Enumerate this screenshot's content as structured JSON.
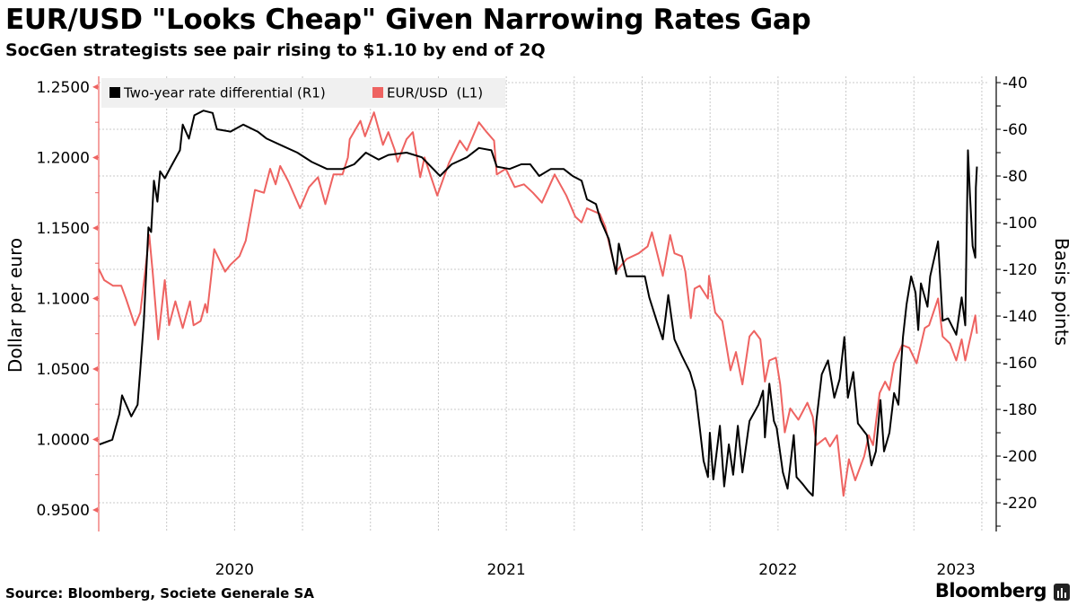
{
  "header": {
    "title": "EUR/USD \"Looks Cheap\" Given Narrowing Rates Gap",
    "subtitle": "SocGen strategists see pair rising to $1.10 by end of 2Q"
  },
  "footer": {
    "source": "Source: Bloomberg, Societe Generale SA",
    "brand": "Bloomberg"
  },
  "chart_data": {
    "type": "line",
    "title": "EUR/USD \"Looks Cheap\" Given Narrowing Rates Gap",
    "x_unit": "decimal year",
    "xlim": [
      2020.0,
      2023.27
    ],
    "x_tick_labels": [
      {
        "label": "2020",
        "at": 2020.5
      },
      {
        "label": "2021",
        "at": 2021.5
      },
      {
        "label": "2022",
        "at": 2022.5
      },
      {
        "label": "2023",
        "at": 2023.155
      }
    ],
    "x_gridlines": "quarterly",
    "left_axis": {
      "label": "Dollar per euro",
      "ylim": [
        0.9347,
        1.2576
      ],
      "ticks": [
        "1.2500",
        "1.2000",
        "1.1500",
        "1.1000",
        "1.0500",
        "1.0000",
        "0.9500"
      ],
      "tick_values": [
        1.25,
        1.2,
        1.15,
        1.1,
        1.05,
        1.0,
        0.95
      ],
      "color": "#ee6361"
    },
    "right_axis": {
      "label": "Basis points",
      "ylim": [
        -232.3,
        -37.3
      ],
      "ticks": [
        "-40",
        "-60",
        "-80",
        "-100",
        "-120",
        "-140",
        "-160",
        "-180",
        "-200",
        "-220"
      ],
      "tick_values": [
        -40,
        -60,
        -80,
        -100,
        -120,
        -140,
        -160,
        -180,
        -200,
        -220
      ],
      "color": "#000000"
    },
    "grid": true,
    "legend_position": "top-left",
    "series": [
      {
        "name": "Two-year rate differential (R1)",
        "axis": "right",
        "color": "#000000",
        "points": [
          [
            2020.003,
            -195
          ],
          [
            2020.05,
            -193
          ],
          [
            2020.076,
            -182
          ],
          [
            2020.086,
            -174
          ],
          [
            2020.12,
            -183
          ],
          [
            2020.143,
            -178
          ],
          [
            2020.153,
            -163
          ],
          [
            2020.166,
            -142
          ],
          [
            2020.183,
            -102
          ],
          [
            2020.193,
            -104
          ],
          [
            2020.203,
            -82
          ],
          [
            2020.216,
            -91
          ],
          [
            2020.226,
            -78
          ],
          [
            2020.243,
            -81
          ],
          [
            2020.266,
            -76
          ],
          [
            2020.299,
            -69
          ],
          [
            2020.309,
            -58
          ],
          [
            2020.332,
            -64
          ],
          [
            2020.352,
            -54
          ],
          [
            2020.385,
            -52
          ],
          [
            2020.419,
            -53
          ],
          [
            2020.435,
            -60
          ],
          [
            2020.485,
            -61
          ],
          [
            2020.532,
            -58
          ],
          [
            2020.585,
            -61
          ],
          [
            2020.618,
            -64
          ],
          [
            2020.674,
            -67
          ],
          [
            2020.731,
            -70
          ],
          [
            2020.784,
            -74
          ],
          [
            2020.84,
            -77
          ],
          [
            2020.897,
            -77
          ],
          [
            2020.94,
            -75
          ],
          [
            2020.983,
            -70
          ],
          [
            2021.03,
            -73
          ],
          [
            2021.066,
            -71
          ],
          [
            2021.133,
            -70
          ],
          [
            2021.189,
            -72
          ],
          [
            2021.256,
            -80
          ],
          [
            2021.299,
            -75
          ],
          [
            2021.355,
            -72
          ],
          [
            2021.399,
            -68
          ],
          [
            2021.445,
            -69
          ],
          [
            2021.465,
            -76
          ],
          [
            2021.512,
            -77
          ],
          [
            2021.555,
            -75
          ],
          [
            2021.588,
            -75
          ],
          [
            2021.621,
            -80
          ],
          [
            2021.664,
            -77
          ],
          [
            2021.711,
            -77
          ],
          [
            2021.744,
            -80
          ],
          [
            2021.777,
            -82
          ],
          [
            2021.797,
            -90
          ],
          [
            2021.83,
            -92
          ],
          [
            2021.847,
            -99
          ],
          [
            2021.877,
            -107
          ],
          [
            2021.904,
            -122
          ],
          [
            2021.914,
            -109
          ],
          [
            2021.943,
            -123
          ],
          [
            2021.977,
            -123
          ],
          [
            2022.01,
            -123
          ],
          [
            2022.026,
            -132
          ],
          [
            2022.053,
            -142
          ],
          [
            2022.076,
            -150
          ],
          [
            2022.096,
            -131
          ],
          [
            2022.119,
            -150
          ],
          [
            2022.146,
            -157
          ],
          [
            2022.176,
            -164
          ],
          [
            2022.196,
            -172
          ],
          [
            2022.212,
            -188
          ],
          [
            2022.226,
            -202
          ],
          [
            2022.242,
            -209
          ],
          [
            2022.249,
            -190
          ],
          [
            2022.262,
            -210
          ],
          [
            2022.286,
            -187
          ],
          [
            2022.302,
            -213
          ],
          [
            2022.319,
            -195
          ],
          [
            2022.335,
            -208
          ],
          [
            2022.352,
            -187
          ],
          [
            2022.369,
            -207
          ],
          [
            2022.395,
            -185
          ],
          [
            2022.428,
            -178
          ],
          [
            2022.445,
            -172
          ],
          [
            2022.452,
            -192
          ],
          [
            2022.468,
            -169
          ],
          [
            2022.485,
            -185
          ],
          [
            2022.495,
            -188
          ],
          [
            2022.518,
            -207
          ],
          [
            2022.535,
            -214
          ],
          [
            2022.558,
            -191
          ],
          [
            2022.568,
            -209
          ],
          [
            2022.591,
            -212
          ],
          [
            2022.611,
            -215
          ],
          [
            2022.628,
            -217
          ],
          [
            2022.641,
            -185
          ],
          [
            2022.661,
            -165
          ],
          [
            2022.684,
            -159
          ],
          [
            2022.707,
            -175
          ],
          [
            2022.727,
            -167
          ],
          [
            2022.744,
            -149
          ],
          [
            2022.757,
            -175
          ],
          [
            2022.777,
            -164
          ],
          [
            2022.794,
            -186
          ],
          [
            2022.827,
            -191
          ],
          [
            2022.844,
            -204
          ],
          [
            2022.86,
            -198
          ],
          [
            2022.877,
            -176
          ],
          [
            2022.89,
            -198
          ],
          [
            2022.91,
            -190
          ],
          [
            2022.927,
            -173
          ],
          [
            2022.943,
            -178
          ],
          [
            2022.96,
            -149
          ],
          [
            2022.973,
            -135
          ],
          [
            2022.99,
            -123
          ],
          [
            2023.006,
            -130
          ],
          [
            2023.016,
            -146
          ],
          [
            2023.026,
            -126
          ],
          [
            2023.05,
            -136
          ],
          [
            2023.06,
            -123
          ],
          [
            2023.089,
            -108
          ],
          [
            2023.106,
            -142
          ],
          [
            2023.126,
            -141
          ],
          [
            2023.156,
            -148
          ],
          [
            2023.176,
            -132
          ],
          [
            2023.189,
            -144
          ],
          [
            2023.199,
            -69
          ],
          [
            2023.206,
            -87
          ],
          [
            2023.216,
            -110
          ],
          [
            2023.226,
            -115
          ],
          [
            2023.228,
            -85
          ],
          [
            2023.232,
            -76
          ]
        ]
      },
      {
        "name": "EUR/USD  (L1)",
        "axis": "left",
        "color": "#ee6361",
        "points": [
          [
            2020.0,
            1.121
          ],
          [
            2020.02,
            1.113
          ],
          [
            2020.053,
            1.109
          ],
          [
            2020.083,
            1.109
          ],
          [
            2020.1,
            1.1
          ],
          [
            2020.133,
            1.081
          ],
          [
            2020.153,
            1.09
          ],
          [
            2020.169,
            1.116
          ],
          [
            2020.186,
            1.145
          ],
          [
            2020.199,
            1.118
          ],
          [
            2020.219,
            1.071
          ],
          [
            2020.243,
            1.113
          ],
          [
            2020.259,
            1.081
          ],
          [
            2020.282,
            1.098
          ],
          [
            2020.309,
            1.079
          ],
          [
            2020.336,
            1.098
          ],
          [
            2020.349,
            1.081
          ],
          [
            2020.375,
            1.084
          ],
          [
            2020.392,
            1.096
          ],
          [
            2020.399,
            1.09
          ],
          [
            2020.425,
            1.135
          ],
          [
            2020.465,
            1.119
          ],
          [
            2020.485,
            1.124
          ],
          [
            2020.518,
            1.13
          ],
          [
            2020.541,
            1.141
          ],
          [
            2020.575,
            1.177
          ],
          [
            2020.608,
            1.175
          ],
          [
            2020.631,
            1.192
          ],
          [
            2020.651,
            1.181
          ],
          [
            2020.668,
            1.194
          ],
          [
            2020.698,
            1.183
          ],
          [
            2020.741,
            1.164
          ],
          [
            2020.774,
            1.179
          ],
          [
            2020.807,
            1.186
          ],
          [
            2020.834,
            1.167
          ],
          [
            2020.864,
            1.188
          ],
          [
            2020.897,
            1.188
          ],
          [
            2020.917,
            1.2
          ],
          [
            2020.924,
            1.213
          ],
          [
            2020.963,
            1.226
          ],
          [
            2020.98,
            1.215
          ],
          [
            2021.013,
            1.232
          ],
          [
            2021.046,
            1.209
          ],
          [
            2021.066,
            1.218
          ],
          [
            2021.09,
            1.205
          ],
          [
            2021.1,
            1.197
          ],
          [
            2021.133,
            1.213
          ],
          [
            2021.156,
            1.218
          ],
          [
            2021.183,
            1.186
          ],
          [
            2021.199,
            1.2
          ],
          [
            2021.246,
            1.173
          ],
          [
            2021.289,
            1.196
          ],
          [
            2021.329,
            1.212
          ],
          [
            2021.355,
            1.205
          ],
          [
            2021.399,
            1.225
          ],
          [
            2021.428,
            1.218
          ],
          [
            2021.455,
            1.212
          ],
          [
            2021.465,
            1.188
          ],
          [
            2021.498,
            1.192
          ],
          [
            2021.531,
            1.179
          ],
          [
            2021.565,
            1.181
          ],
          [
            2021.598,
            1.175
          ],
          [
            2021.631,
            1.168
          ],
          [
            2021.678,
            1.188
          ],
          [
            2021.721,
            1.173
          ],
          [
            2021.754,
            1.158
          ],
          [
            2021.777,
            1.154
          ],
          [
            2021.797,
            1.164
          ],
          [
            2021.844,
            1.16
          ],
          [
            2021.864,
            1.151
          ],
          [
            2021.887,
            1.132
          ],
          [
            2021.904,
            1.119
          ],
          [
            2021.943,
            1.128
          ],
          [
            2021.987,
            1.132
          ],
          [
            2022.02,
            1.137
          ],
          [
            2022.036,
            1.147
          ],
          [
            2022.076,
            1.116
          ],
          [
            2022.103,
            1.145
          ],
          [
            2022.119,
            1.132
          ],
          [
            2022.146,
            1.13
          ],
          [
            2022.159,
            1.119
          ],
          [
            2022.179,
            1.086
          ],
          [
            2022.193,
            1.107
          ],
          [
            2022.212,
            1.109
          ],
          [
            2022.242,
            1.1
          ],
          [
            2022.246,
            1.116
          ],
          [
            2022.269,
            1.09
          ],
          [
            2022.295,
            1.084
          ],
          [
            2022.325,
            1.049
          ],
          [
            2022.345,
            1.062
          ],
          [
            2022.369,
            1.039
          ],
          [
            2022.395,
            1.073
          ],
          [
            2022.412,
            1.077
          ],
          [
            2022.435,
            1.071
          ],
          [
            2022.452,
            1.041
          ],
          [
            2022.468,
            1.056
          ],
          [
            2022.492,
            1.058
          ],
          [
            2022.508,
            1.039
          ],
          [
            2022.525,
            1.005
          ],
          [
            2022.545,
            1.022
          ],
          [
            2022.575,
            1.014
          ],
          [
            2022.608,
            1.026
          ],
          [
            2022.628,
            1.016
          ],
          [
            2022.641,
            0.996
          ],
          [
            2022.674,
            1.001
          ],
          [
            2022.691,
            0.995
          ],
          [
            2022.717,
            1.003
          ],
          [
            2022.741,
            0.96
          ],
          [
            2022.761,
            0.986
          ],
          [
            2022.784,
            0.971
          ],
          [
            2022.817,
            0.988
          ],
          [
            2022.834,
            1.003
          ],
          [
            2022.85,
            0.996
          ],
          [
            2022.874,
            1.033
          ],
          [
            2022.894,
            1.041
          ],
          [
            2022.91,
            1.035
          ],
          [
            2022.927,
            1.054
          ],
          [
            2022.957,
            1.067
          ],
          [
            2022.983,
            1.065
          ],
          [
            2023.01,
            1.054
          ],
          [
            2023.04,
            1.079
          ],
          [
            2023.056,
            1.081
          ],
          [
            2023.089,
            1.1
          ],
          [
            2023.106,
            1.073
          ],
          [
            2023.133,
            1.068
          ],
          [
            2023.156,
            1.056
          ],
          [
            2023.176,
            1.071
          ],
          [
            2023.189,
            1.056
          ],
          [
            2023.209,
            1.073
          ],
          [
            2023.226,
            1.088
          ],
          [
            2023.232,
            1.075
          ]
        ]
      }
    ]
  }
}
